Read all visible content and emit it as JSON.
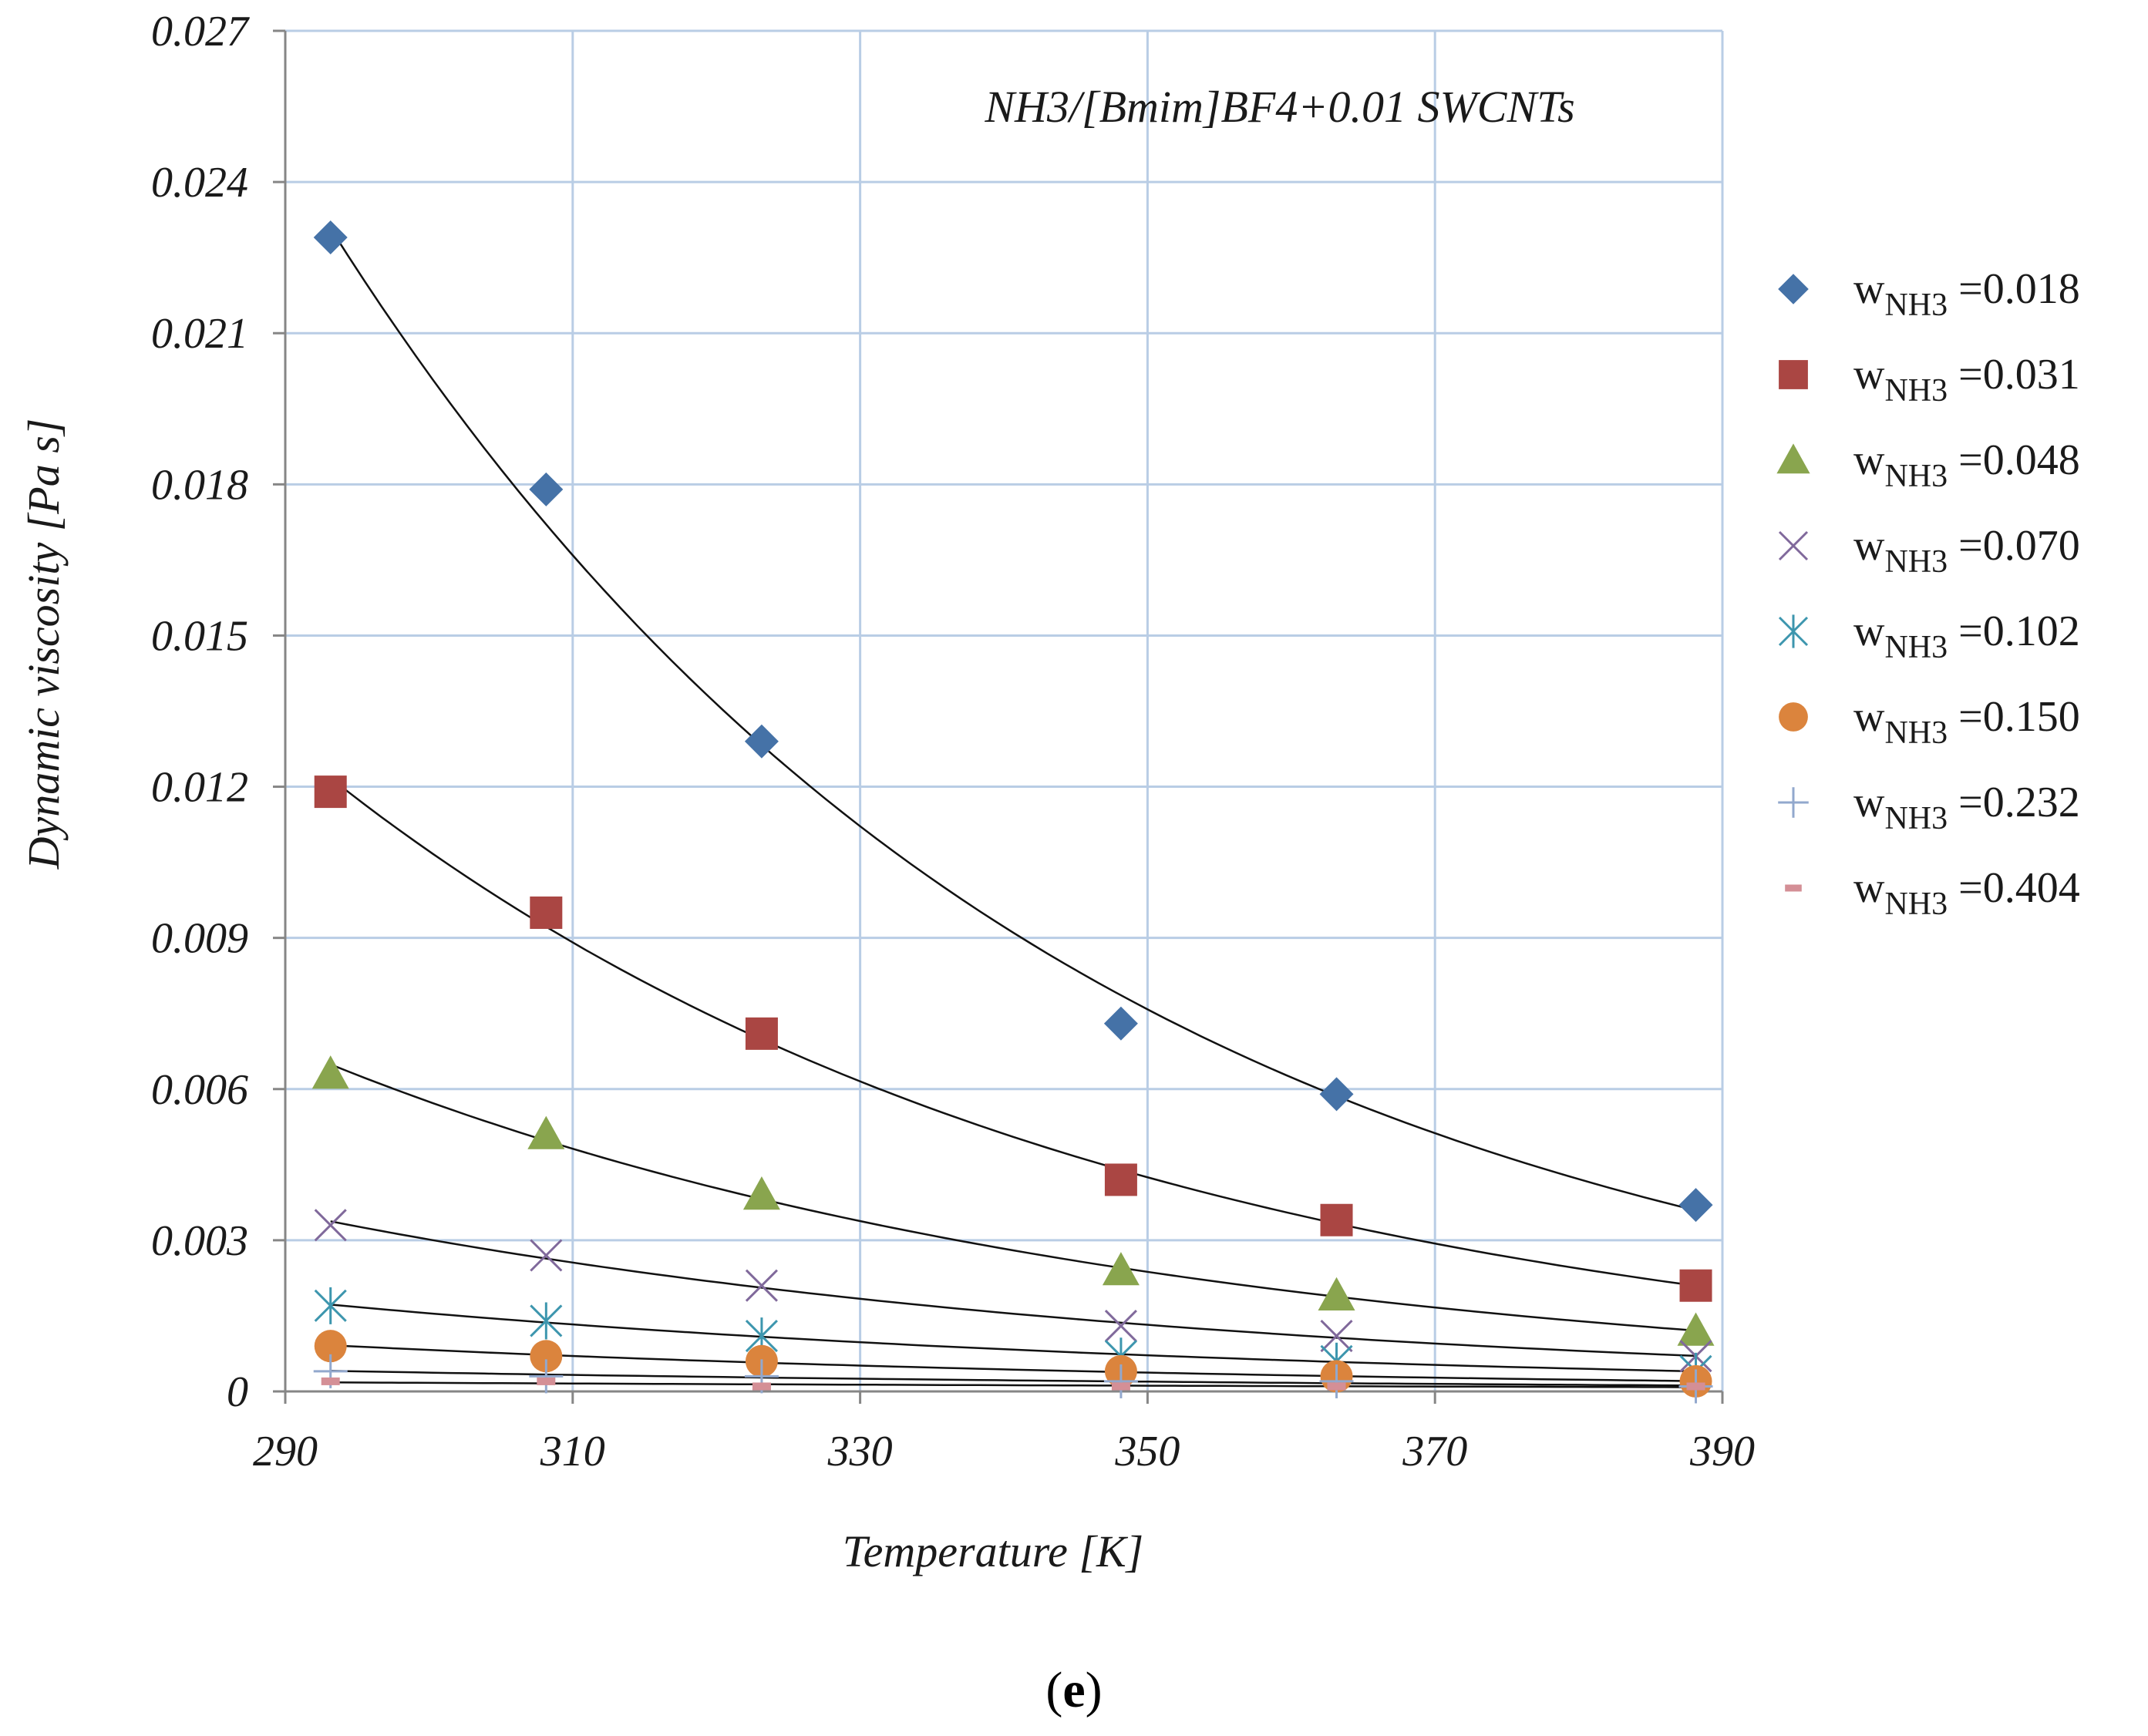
{
  "chart_data": {
    "type": "scatter",
    "annotation": "NH3/[Bmim]BF4+0.01 SWCNTs",
    "xlabel": "Temperature [K]",
    "ylabel": "Dynamic viscosity [Pa s]",
    "xlim": [
      290,
      390
    ],
    "ylim": [
      0,
      0.027
    ],
    "x_ticks": [
      "290",
      "310",
      "330",
      "350",
      "370",
      "390"
    ],
    "y_ticks": [
      "0",
      "0.003",
      "0.006",
      "0.009",
      "0.012",
      "0.015",
      "0.018",
      "0.021",
      "0.024",
      "0.027"
    ],
    "grid": true,
    "legend_position": "right",
    "x": [
      293.15,
      308.15,
      323.15,
      348.15,
      363.15,
      388.15
    ],
    "series": [
      {
        "name": "w_NH3 =0.018",
        "w_label": "w",
        "w_sub": "NH3",
        "w_value": "=0.018",
        "marker": "diamond",
        "color": "#4572a7",
        "values": [
          0.0229,
          0.0179,
          0.0129,
          0.0073,
          0.0059,
          0.0037
        ]
      },
      {
        "name": "w_NH3 =0.031",
        "w_label": "w",
        "w_sub": "NH3",
        "w_value": "=0.031",
        "marker": "square",
        "color": "#aa4643",
        "values": [
          0.0119,
          0.0095,
          0.0071,
          0.0042,
          0.0034,
          0.0021
        ]
      },
      {
        "name": "w_NH3 =0.048",
        "w_label": "w",
        "w_sub": "NH3",
        "w_value": "=0.048",
        "marker": "triangle",
        "color": "#89a54e",
        "values": [
          0.0063,
          0.0051,
          0.0039,
          0.0024,
          0.0019,
          0.0012
        ]
      },
      {
        "name": "w_NH3 =0.070",
        "w_label": "w",
        "w_sub": "NH3",
        "w_value": "=0.070",
        "marker": "x",
        "color": "#80699b",
        "values": [
          0.0033,
          0.0027,
          0.0021,
          0.0013,
          0.0011,
          0.0007
        ]
      },
      {
        "name": "w_NH3 =0.102",
        "w_label": "w",
        "w_sub": "NH3",
        "w_value": "=0.102",
        "marker": "star",
        "color": "#3d96ae",
        "values": [
          0.0017,
          0.0014,
          0.0011,
          0.0007,
          0.0006,
          0.0004
        ]
      },
      {
        "name": "w_NH3 =0.150",
        "w_label": "w",
        "w_sub": "NH3",
        "w_value": "=0.150",
        "marker": "circle",
        "color": "#db843d",
        "values": [
          0.0009,
          0.0007,
          0.0006,
          0.0004,
          0.0003,
          0.0002
        ]
      },
      {
        "name": "w_NH3 =0.232",
        "w_label": "w",
        "w_sub": "NH3",
        "w_value": "=0.232",
        "marker": "plus",
        "color": "#92a8cd",
        "values": [
          0.0004,
          0.0003,
          0.0003,
          0.0002,
          0.0002,
          0.0001
        ]
      },
      {
        "name": "w_NH3 =0.404",
        "w_label": "w",
        "w_sub": "NH3",
        "w_value": "=0.404",
        "marker": "dash",
        "color": "#d48f96",
        "values": [
          0.0002,
          0.0002,
          0.0001,
          0.0001,
          0.0001,
          0.0001
        ]
      }
    ],
    "trendlines": "exponential fit per series (black)"
  },
  "caption": {
    "open": "(",
    "letter": "e",
    "close": ")"
  }
}
